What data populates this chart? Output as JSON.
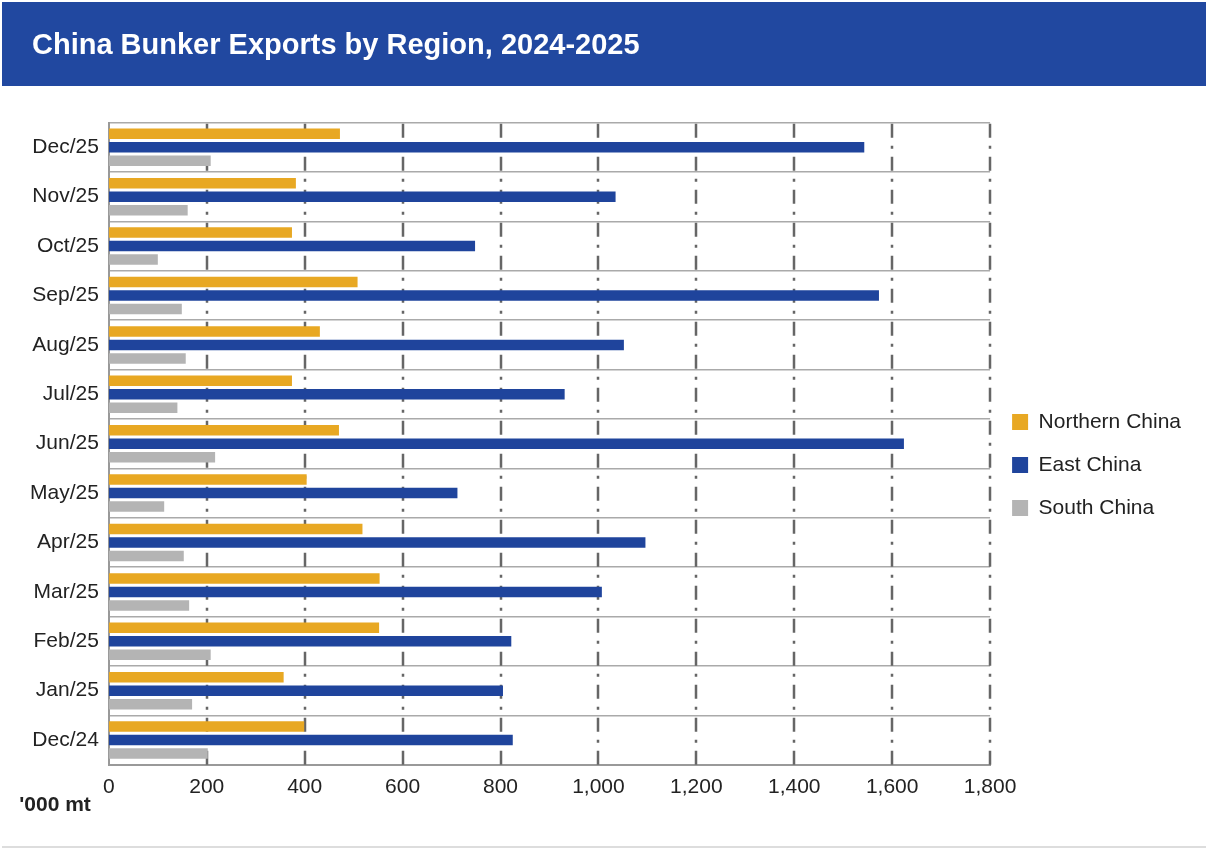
{
  "chart_data": {
    "type": "bar",
    "orientation": "horizontal",
    "title": "China Bunker Exports by Region, 2024-2025",
    "xlabel": "'000 mt",
    "categories": [
      "Dec/25",
      "Nov/25",
      "Oct/25",
      "Sep/25",
      "Aug/25",
      "Jul/25",
      "Jun/25",
      "May/25",
      "Apr/25",
      "Mar/25",
      "Feb/25",
      "Jan/25",
      "Dec/24"
    ],
    "series": [
      {
        "name": "Northern China",
        "color": "#e8a823",
        "values": [
          472,
          382,
          374,
          508,
          431,
          374,
          470,
          404,
          518,
          553,
          552,
          357,
          399
        ]
      },
      {
        "name": "East China",
        "color": "#1f449c",
        "values": [
          1543,
          1035,
          748,
          1573,
          1052,
          931,
          1624,
          712,
          1096,
          1007,
          822,
          805,
          825
        ]
      },
      {
        "name": "South China",
        "color": "#b4b4b4",
        "values": [
          208,
          161,
          100,
          149,
          157,
          140,
          217,
          113,
          153,
          164,
          208,
          170,
          202
        ]
      }
    ],
    "xlim": [
      0,
      1800
    ],
    "xticks": [
      0,
      {
        "value": 200,
        "label": "200"
      },
      {
        "value": 400,
        "label": "400"
      },
      {
        "value": 600,
        "label": "600"
      },
      {
        "value": 800,
        "label": "800"
      },
      {
        "value": 1000,
        "label": "1,000"
      },
      {
        "value": 1200,
        "label": "1,200"
      },
      {
        "value": 1400,
        "label": "1,400"
      },
      {
        "value": 1600,
        "label": "1,600"
      },
      {
        "value": 1800,
        "label": "1,800"
      }
    ],
    "grid": true,
    "legend": "right"
  }
}
